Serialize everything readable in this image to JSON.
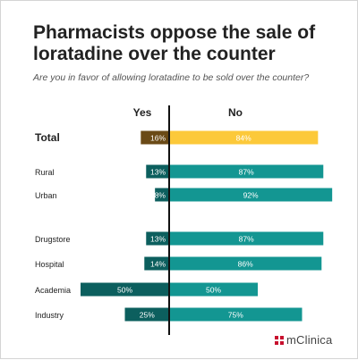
{
  "header": {
    "title": "Pharmacists oppose the sale of loratadine over the counter",
    "subtitle": "Are you in favor of allowing loratadine to be sold over the counter?"
  },
  "chart_data": {
    "type": "bar",
    "orientation": "horizontal-diverging",
    "xlabel": "",
    "ylabel": "",
    "column_headers": {
      "yes": "Yes",
      "no": "No"
    },
    "categories": [
      "Total",
      "Rural",
      "Urban",
      "Drugstore",
      "Hospital",
      "Academia",
      "Industry"
    ],
    "groups": [
      [
        "Total"
      ],
      [
        "Rural",
        "Urban"
      ],
      [
        "Drugstore",
        "Hospital",
        "Academia",
        "Industry"
      ]
    ],
    "series": [
      {
        "key": "yes",
        "values": [
          16,
          13,
          8,
          13,
          14,
          50,
          25
        ],
        "labels": [
          "16%",
          "13%",
          "8%",
          "13%",
          "14%",
          "50%",
          "25%"
        ]
      },
      {
        "key": "no",
        "values": [
          84,
          87,
          92,
          87,
          86,
          50,
          75
        ],
        "labels": [
          "84%",
          "87%",
          "92%",
          "87%",
          "86%",
          "50%",
          "75%"
        ]
      }
    ],
    "colors": {
      "total_yes": "#6a4a16",
      "total_no": "#fcc93a",
      "yes": "#0c5f5e",
      "no": "#139692",
      "axis": "#111111"
    },
    "grid": false,
    "legend": "none"
  },
  "brand": {
    "logo_text": "mClinica",
    "logo_color": "#c8102e"
  }
}
